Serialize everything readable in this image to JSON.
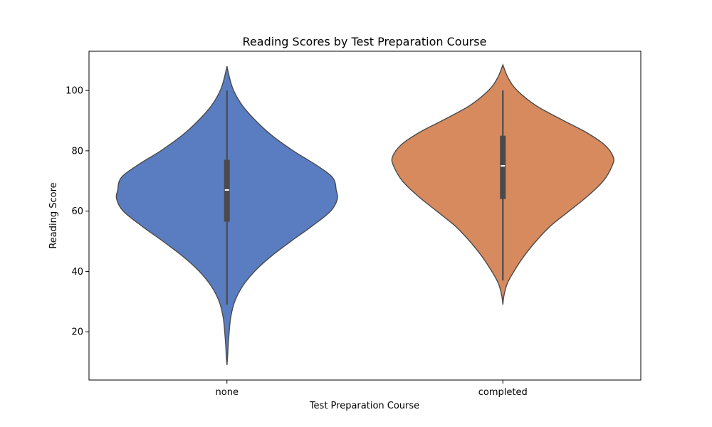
{
  "chart_data": {
    "type": "violin",
    "title": "Reading Scores by Test Preparation Course",
    "xlabel": "Test Preparation Course",
    "ylabel": "Reading Score",
    "ylim": [
      4,
      113
    ],
    "yticks": [
      20,
      40,
      60,
      80,
      100
    ],
    "grid": false,
    "categories": [
      "none",
      "completed"
    ],
    "series": [
      {
        "category": "none",
        "color": "#5a7dc1",
        "min": 29,
        "q1": 56.5,
        "median": 67,
        "q3": 77,
        "max": 100,
        "density": [
          [
            9,
            0.0
          ],
          [
            12,
            0.006
          ],
          [
            16,
            0.012
          ],
          [
            20,
            0.02
          ],
          [
            25,
            0.035
          ],
          [
            30,
            0.07
          ],
          [
            35,
            0.14
          ],
          [
            40,
            0.25
          ],
          [
            45,
            0.4
          ],
          [
            50,
            0.58
          ],
          [
            55,
            0.77
          ],
          [
            60,
            0.94
          ],
          [
            64,
            1.0
          ],
          [
            67,
            0.99
          ],
          [
            71,
            0.96
          ],
          [
            75,
            0.82
          ],
          [
            80,
            0.6
          ],
          [
            85,
            0.41
          ],
          [
            90,
            0.26
          ],
          [
            95,
            0.14
          ],
          [
            100,
            0.06
          ],
          [
            104,
            0.025
          ],
          [
            108,
            0.0
          ]
        ]
      },
      {
        "category": "completed",
        "color": "#d68a5e",
        "min": 37,
        "q1": 64,
        "median": 75,
        "q3": 85,
        "max": 100,
        "density": [
          [
            29,
            0.0
          ],
          [
            32,
            0.01
          ],
          [
            36,
            0.04
          ],
          [
            40,
            0.1
          ],
          [
            45,
            0.19
          ],
          [
            50,
            0.3
          ],
          [
            55,
            0.43
          ],
          [
            60,
            0.6
          ],
          [
            65,
            0.77
          ],
          [
            70,
            0.91
          ],
          [
            75,
            0.99
          ],
          [
            78,
            1.0
          ],
          [
            82,
            0.92
          ],
          [
            86,
            0.76
          ],
          [
            90,
            0.55
          ],
          [
            95,
            0.3
          ],
          [
            100,
            0.13
          ],
          [
            104,
            0.05
          ],
          [
            108.5,
            0.0
          ]
        ]
      }
    ]
  }
}
